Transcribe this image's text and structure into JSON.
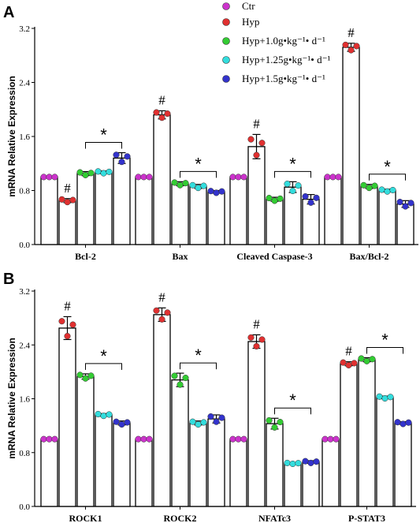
{
  "legend": [
    {
      "label": "Ctr",
      "color": "#cc33cc"
    },
    {
      "label": "Hyp",
      "color": "#e03030"
    },
    {
      "label": "Hyp+1.0g•kg⁻¹• d⁻¹",
      "color": "#33cc33"
    },
    {
      "label": "Hyp+1.25g•kg⁻¹• d⁻¹",
      "color": "#33dddd"
    },
    {
      "label": "Hyp+1.5g•kg⁻¹• d⁻¹",
      "color": "#3333cc"
    }
  ],
  "chart_data": [
    {
      "type": "bar",
      "panel": "A",
      "ylabel": "mRNA Relative Expression",
      "ylim": [
        0,
        3.2
      ],
      "yticks": [
        "0.0",
        "0.8",
        "1.6",
        "2.4",
        "3.2"
      ],
      "categories": [
        "Bcl-2",
        "Bax",
        "Cleaved Caspase-3",
        "Bax/Bcl-2"
      ],
      "series": [
        {
          "name": "Ctr",
          "values": [
            1.0,
            1.0,
            1.0,
            1.0
          ],
          "err": [
            0,
            0,
            0,
            0
          ]
        },
        {
          "name": "Hyp",
          "values": [
            0.65,
            1.92,
            1.45,
            2.92
          ],
          "err": [
            0.03,
            0.06,
            0.18,
            0.06
          ]
        },
        {
          "name": "Hyp+1.0g•kg⁻¹• d⁻¹",
          "values": [
            1.05,
            0.9,
            0.67,
            0.86
          ],
          "err": [
            0.03,
            0.03,
            0.03,
            0.03
          ]
        },
        {
          "name": "Hyp+1.25g•kg⁻¹• d⁻¹",
          "values": [
            1.07,
            0.86,
            0.85,
            0.8
          ],
          "err": [
            0.02,
            0.03,
            0.08,
            0.02
          ]
        },
        {
          "name": "Hyp+1.5g•kg⁻¹• d⁻¹",
          "values": [
            1.28,
            0.78,
            0.67,
            0.6
          ],
          "err": [
            0.08,
            0.02,
            0.07,
            0.05
          ]
        }
      ],
      "markers": {
        "hash": [
          "#",
          "#",
          "#",
          "#"
        ],
        "star": [
          "*",
          "*",
          "*",
          "*"
        ]
      }
    },
    {
      "type": "bar",
      "panel": "B",
      "ylabel": "mRNA Relative Expression",
      "ylim": [
        0,
        3.2
      ],
      "yticks": [
        "0.0",
        "0.8",
        "1.6",
        "2.4",
        "3.2"
      ],
      "categories": [
        "ROCK1",
        "ROCK2",
        "NFATc3",
        "P-STAT3"
      ],
      "series": [
        {
          "name": "Ctr",
          "values": [
            1.0,
            1.0,
            1.0,
            1.0
          ],
          "err": [
            0,
            0,
            0,
            0
          ]
        },
        {
          "name": "Hyp",
          "values": [
            2.65,
            2.85,
            2.45,
            2.12
          ],
          "err": [
            0.17,
            0.1,
            0.1,
            0.03
          ]
        },
        {
          "name": "Hyp+1.0g•kg⁻¹• d⁻¹",
          "values": [
            1.93,
            1.88,
            1.23,
            2.18
          ],
          "err": [
            0.04,
            0.1,
            0.08,
            0.03
          ]
        },
        {
          "name": "Hyp+1.25g•kg⁻¹• d⁻¹",
          "values": [
            1.36,
            1.24,
            0.64,
            1.62
          ],
          "err": [
            0.02,
            0.03,
            0.01,
            0.02
          ]
        },
        {
          "name": "Hyp+1.5g•kg⁻¹• d⁻¹",
          "values": [
            1.24,
            1.3,
            0.66,
            1.24
          ],
          "err": [
            0.03,
            0.06,
            0.02,
            0.02
          ]
        }
      ],
      "markers": {
        "hash": [
          "#",
          "#",
          "#",
          "#"
        ],
        "star": [
          "*",
          "*",
          "*",
          "*"
        ]
      }
    }
  ]
}
